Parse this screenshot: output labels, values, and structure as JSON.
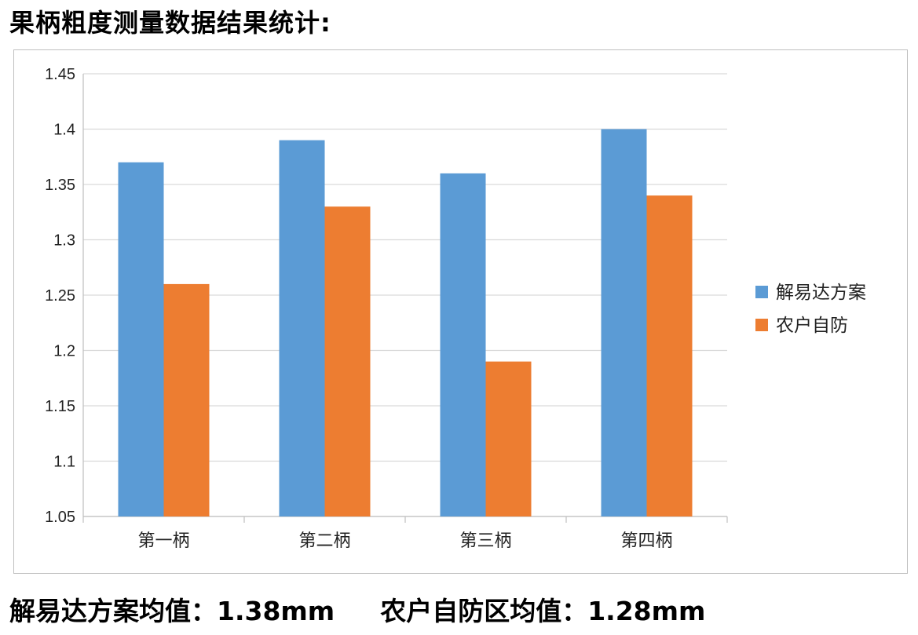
{
  "heading": "果柄粗度测量数据结果统计:",
  "footer": {
    "left": "解易达方案均值：1.38mm",
    "right": "农户自防区均值：1.28mm"
  },
  "chart_data": {
    "type": "bar",
    "categories": [
      "第一柄",
      "第二柄",
      "第三柄",
      "第四柄"
    ],
    "series": [
      {
        "name": "解易达方案",
        "color": "#5b9bd5",
        "values": [
          1.37,
          1.39,
          1.36,
          1.4
        ]
      },
      {
        "name": "农户自防",
        "color": "#ed7d31",
        "values": [
          1.26,
          1.33,
          1.19,
          1.34
        ]
      }
    ],
    "ylim": [
      1.05,
      1.45
    ],
    "yticks": [
      "1.05",
      "1.1",
      "1.15",
      "1.2",
      "1.25",
      "1.3",
      "1.35",
      "1.4",
      "1.45"
    ],
    "grid": true,
    "legend_position": "right"
  }
}
